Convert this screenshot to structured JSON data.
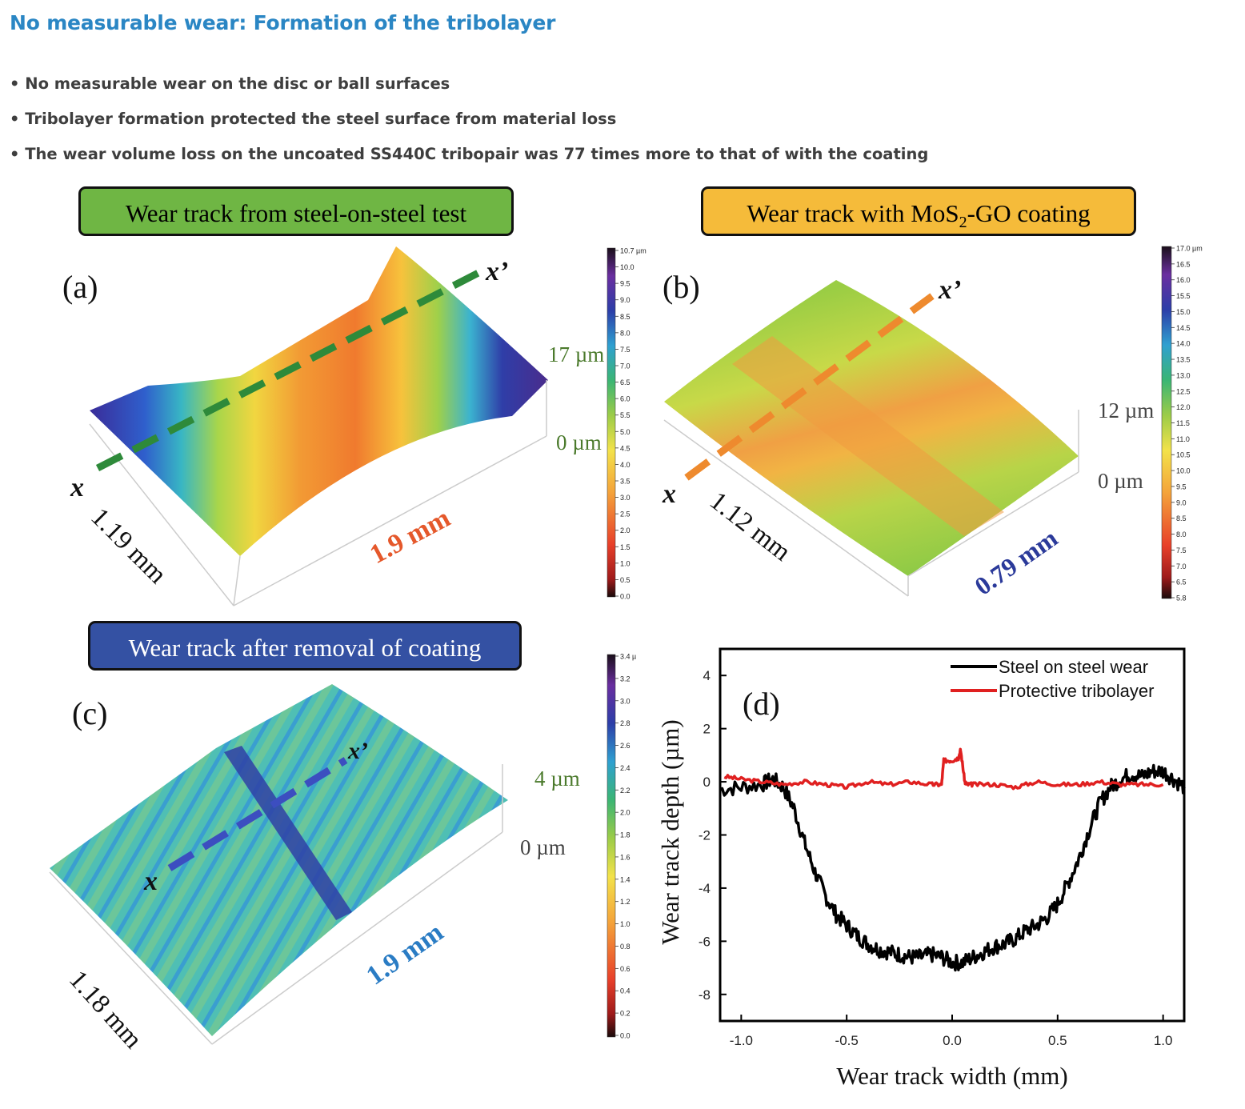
{
  "header": {
    "title": "No measurable wear: Formation of the tribolayer",
    "bullets": [
      "• No measurable wear on the disc or ball surfaces",
      "• Tribolayer formation protected the steel surface from material loss",
      "• The wear volume loss on the uncoated SS440C tribopair was 77 times more to that of with the coating"
    ]
  },
  "panels": {
    "a": {
      "box_label": "Wear track from steel-on-steel test",
      "box_color": "#6fb644",
      "letter": "(a)",
      "z_top": "17 µm",
      "z_bottom": "0 µm",
      "x_label": "x",
      "xp_label": "x’",
      "dim1": "1.19 mm",
      "dim2": "1.9 mm",
      "dim2_color": "#e5582b",
      "colorbar_ticks": [
        "10.7 µm",
        "10.0",
        "9.5",
        "9.0",
        "8.5",
        "8.0",
        "7.5",
        "7.0",
        "6.5",
        "6.0",
        "5.5",
        "5.0",
        "4.5",
        "4.0",
        "3.5",
        "3.0",
        "2.5",
        "2.0",
        "1.5",
        "1.0",
        "0.5",
        "0.0"
      ]
    },
    "b": {
      "box_label_pre": "Wear track with MoS",
      "box_label_sub": "2",
      "box_label_post": "-GO coating",
      "box_color": "#f5bb3a",
      "letter": "(b)",
      "z_top": "12 µm",
      "z_bottom": "0 µm",
      "x_label": "x",
      "xp_label": "x’",
      "dim1": "1.12 mm",
      "dim2": "0.79 mm",
      "dim2_color": "#2b3a9a",
      "colorbar_ticks": [
        "17.0 µm",
        "16.5",
        "16.0",
        "15.5",
        "15.0",
        "14.5",
        "14.0",
        "13.5",
        "13.0",
        "12.5",
        "12.0",
        "11.5",
        "11.0",
        "10.5",
        "10.0",
        "9.5",
        "9.0",
        "8.5",
        "8.0",
        "7.5",
        "7.0",
        "6.5",
        "5.8"
      ]
    },
    "c": {
      "box_label": "Wear track after removal of coating",
      "box_color": "#3451a3",
      "letter": "(c)",
      "z_top": "4 µm",
      "z_bottom": "0 µm",
      "x_label": "x",
      "xp_label": "x’",
      "dim1": "1.18 mm",
      "dim2": "1.9 mm",
      "dim2_color": "#2a7cc4",
      "colorbar_ticks": [
        "3.4 µ",
        "3.2",
        "3.0",
        "2.8",
        "2.6",
        "2.4",
        "2.2",
        "2.0",
        "1.8",
        "1.6",
        "1.4",
        "1.2",
        "1.0",
        "0.8",
        "0.6",
        "0.4",
        "0.2",
        "0.0"
      ]
    }
  },
  "chart_data": {
    "type": "line",
    "panel_letter": "(d)",
    "xlabel": "Wear track width (mm)",
    "ylabel": "Wear track depth (µm)",
    "xlim": [
      -1.1,
      1.1
    ],
    "ylim": [
      -9,
      5
    ],
    "xticks": [
      "-1.0",
      "-0.5",
      "0.0",
      "0.5",
      "1.0"
    ],
    "yticks": [
      "4",
      "2",
      "0",
      "-2",
      "-4",
      "-6",
      "-8"
    ],
    "legend_position": "top-right",
    "series": [
      {
        "name": "Steel on steel wear",
        "color": "#000000",
        "x": [
          -1.1,
          -1.0,
          -0.9,
          -0.85,
          -0.8,
          -0.75,
          -0.7,
          -0.65,
          -0.6,
          -0.55,
          -0.5,
          -0.45,
          -0.4,
          -0.35,
          -0.3,
          -0.25,
          -0.2,
          -0.15,
          -0.1,
          -0.05,
          0.0,
          0.05,
          0.1,
          0.15,
          0.2,
          0.25,
          0.3,
          0.35,
          0.4,
          0.45,
          0.5,
          0.55,
          0.6,
          0.65,
          0.7,
          0.75,
          0.8,
          0.85,
          0.9,
          0.95,
          1.0,
          1.05,
          1.1
        ],
        "y": [
          -0.3,
          -0.2,
          -0.1,
          0.1,
          -0.2,
          -1.0,
          -2.3,
          -3.4,
          -4.3,
          -5.0,
          -5.4,
          -5.8,
          -6.1,
          -6.3,
          -6.4,
          -6.5,
          -6.6,
          -6.6,
          -6.5,
          -6.6,
          -6.8,
          -6.8,
          -6.6,
          -6.4,
          -6.2,
          -6.1,
          -5.9,
          -5.6,
          -5.4,
          -5.1,
          -4.6,
          -3.8,
          -2.9,
          -1.8,
          -0.8,
          -0.2,
          0.1,
          0.3,
          0.2,
          0.4,
          0.4,
          0.1,
          -0.2
        ]
      },
      {
        "name": "Protective tribolayer",
        "color": "#e02020",
        "x": [
          -1.08,
          -1.0,
          -0.9,
          -0.8,
          -0.7,
          -0.6,
          -0.5,
          -0.4,
          -0.3,
          -0.2,
          -0.1,
          -0.05,
          -0.04,
          0.0,
          0.03,
          0.04,
          0.06,
          0.07,
          0.1,
          0.2,
          0.3,
          0.4,
          0.5,
          0.6,
          0.7,
          0.8,
          0.9,
          1.0
        ],
        "y": [
          0.2,
          0.1,
          0.0,
          -0.1,
          0.0,
          -0.1,
          -0.2,
          0.0,
          -0.1,
          0.0,
          -0.1,
          -0.1,
          0.8,
          0.8,
          0.9,
          1.2,
          0.0,
          -0.1,
          -0.1,
          -0.1,
          -0.2,
          0.0,
          -0.1,
          -0.1,
          0.0,
          -0.1,
          -0.1,
          -0.1
        ]
      }
    ]
  }
}
